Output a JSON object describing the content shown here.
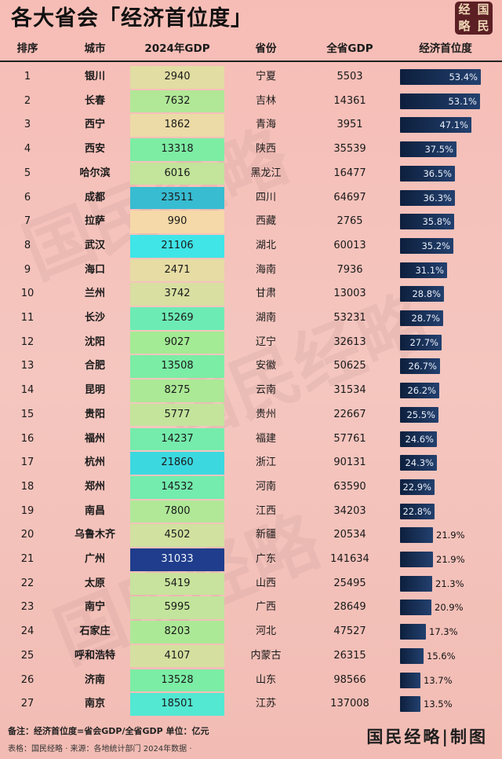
{
  "title": "各大省会「经济首位度」",
  "seal": [
    "经",
    "国",
    "略",
    "民"
  ],
  "watermark": "国民经略",
  "headers": {
    "rank": "排序",
    "city": "城市",
    "gdp": "2024年GDP",
    "province": "省份",
    "province_gdp": "全省GDP",
    "primacy": "经济首位度"
  },
  "chart_data": {
    "type": "table",
    "title": "各大省会「经济首位度」",
    "columns": [
      "排序",
      "城市",
      "2024年GDP",
      "省份",
      "全省GDP",
      "经济首位度"
    ],
    "rows": [
      {
        "rank": "1",
        "city": "银川",
        "gdp": 2940,
        "province": "宁夏",
        "province_gdp": 5503,
        "primacy": 53.4,
        "label": "53.4%"
      },
      {
        "rank": "2",
        "city": "长春",
        "gdp": 7632,
        "province": "吉林",
        "province_gdp": 14361,
        "primacy": 53.1,
        "label": "53.1%"
      },
      {
        "rank": "3",
        "city": "西宁",
        "gdp": 1862,
        "province": "青海",
        "province_gdp": 3951,
        "primacy": 47.1,
        "label": "47.1%"
      },
      {
        "rank": "4",
        "city": "西安",
        "gdp": 13318,
        "province": "陕西",
        "province_gdp": 35539,
        "primacy": 37.5,
        "label": "37.5%"
      },
      {
        "rank": "5",
        "city": "哈尔滨",
        "gdp": 6016,
        "province": "黑龙江",
        "province_gdp": 16477,
        "primacy": 36.5,
        "label": "36.5%"
      },
      {
        "rank": "6",
        "city": "成都",
        "gdp": 23511,
        "province": "四川",
        "province_gdp": 64697,
        "primacy": 36.3,
        "label": "36.3%"
      },
      {
        "rank": "7",
        "city": "拉萨",
        "gdp": 990,
        "province": "西藏",
        "province_gdp": 2765,
        "primacy": 35.8,
        "label": "35.8%"
      },
      {
        "rank": "8",
        "city": "武汉",
        "gdp": 21106,
        "province": "湖北",
        "province_gdp": 60013,
        "primacy": 35.2,
        "label": "35.2%"
      },
      {
        "rank": "9",
        "city": "海口",
        "gdp": 2471,
        "province": "海南",
        "province_gdp": 7936,
        "primacy": 31.1,
        "label": "31.1%"
      },
      {
        "rank": "10",
        "city": "兰州",
        "gdp": 3742,
        "province": "甘肃",
        "province_gdp": 13003,
        "primacy": 28.8,
        "label": "28.8%"
      },
      {
        "rank": "11",
        "city": "长沙",
        "gdp": 15269,
        "province": "湖南",
        "province_gdp": 53231,
        "primacy": 28.7,
        "label": "28.7%"
      },
      {
        "rank": "12",
        "city": "沈阳",
        "gdp": 9027,
        "province": "辽宁",
        "province_gdp": 32613,
        "primacy": 27.7,
        "label": "27.7%"
      },
      {
        "rank": "13",
        "city": "合肥",
        "gdp": 13508,
        "province": "安徽",
        "province_gdp": 50625,
        "primacy": 26.7,
        "label": "26.7%"
      },
      {
        "rank": "14",
        "city": "昆明",
        "gdp": 8275,
        "province": "云南",
        "province_gdp": 31534,
        "primacy": 26.2,
        "label": "26.2%"
      },
      {
        "rank": "15",
        "city": "贵阳",
        "gdp": 5777,
        "province": "贵州",
        "province_gdp": 22667,
        "primacy": 25.5,
        "label": "25.5%"
      },
      {
        "rank": "16",
        "city": "福州",
        "gdp": 14237,
        "province": "福建",
        "province_gdp": 57761,
        "primacy": 24.6,
        "label": "24.6%"
      },
      {
        "rank": "17",
        "city": "杭州",
        "gdp": 21860,
        "province": "浙江",
        "province_gdp": 90131,
        "primacy": 24.3,
        "label": "24.3%"
      },
      {
        "rank": "18",
        "city": "郑州",
        "gdp": 14532,
        "province": "河南",
        "province_gdp": 63590,
        "primacy": 22.9,
        "label": "22.9%"
      },
      {
        "rank": "19",
        "city": "南昌",
        "gdp": 7800,
        "province": "江西",
        "province_gdp": 34203,
        "primacy": 22.8,
        "label": "22.8%"
      },
      {
        "rank": "20",
        "city": "乌鲁木齐",
        "gdp": 4502,
        "province": "新疆",
        "province_gdp": 20534,
        "primacy": 21.9,
        "label": "21.9%"
      },
      {
        "rank": "21",
        "city": "广州",
        "gdp": 31033,
        "province": "广东",
        "province_gdp": 141634,
        "primacy": 21.9,
        "label": "21.9%"
      },
      {
        "rank": "22",
        "city": "太原",
        "gdp": 5419,
        "province": "山西",
        "province_gdp": 25495,
        "primacy": 21.3,
        "label": "21.3%"
      },
      {
        "rank": "23",
        "city": "南宁",
        "gdp": 5995,
        "province": "广西",
        "province_gdp": 28649,
        "primacy": 20.9,
        "label": "20.9%"
      },
      {
        "rank": "24",
        "city": "石家庄",
        "gdp": 8203,
        "province": "河北",
        "province_gdp": 47527,
        "primacy": 17.3,
        "label": "17.3%"
      },
      {
        "rank": "25",
        "city": "呼和浩特",
        "gdp": 4107,
        "province": "内蒙古",
        "province_gdp": 26315,
        "primacy": 15.6,
        "label": "15.6%"
      },
      {
        "rank": "26",
        "city": "济南",
        "gdp": 13528,
        "province": "山东",
        "province_gdp": 98566,
        "primacy": 13.7,
        "label": "13.7%"
      },
      {
        "rank": "27",
        "city": "南京",
        "gdp": 18501,
        "province": "江苏",
        "province_gdp": 137008,
        "primacy": 13.5,
        "label": "13.5%"
      }
    ],
    "primacy_range": [
      0,
      55
    ],
    "gdp_color_scale": [
      "#f5d9a8",
      "#8fef8f",
      "#3fe6e8",
      "#1f3d8c"
    ]
  },
  "footer": {
    "note": "备注：经济首位度=省会GDP/全省GDP 单位：亿元",
    "source": "表格：国民经略 · 来源：各地统计部门 2024年数据 ·",
    "brand": "国民经略|制图"
  }
}
